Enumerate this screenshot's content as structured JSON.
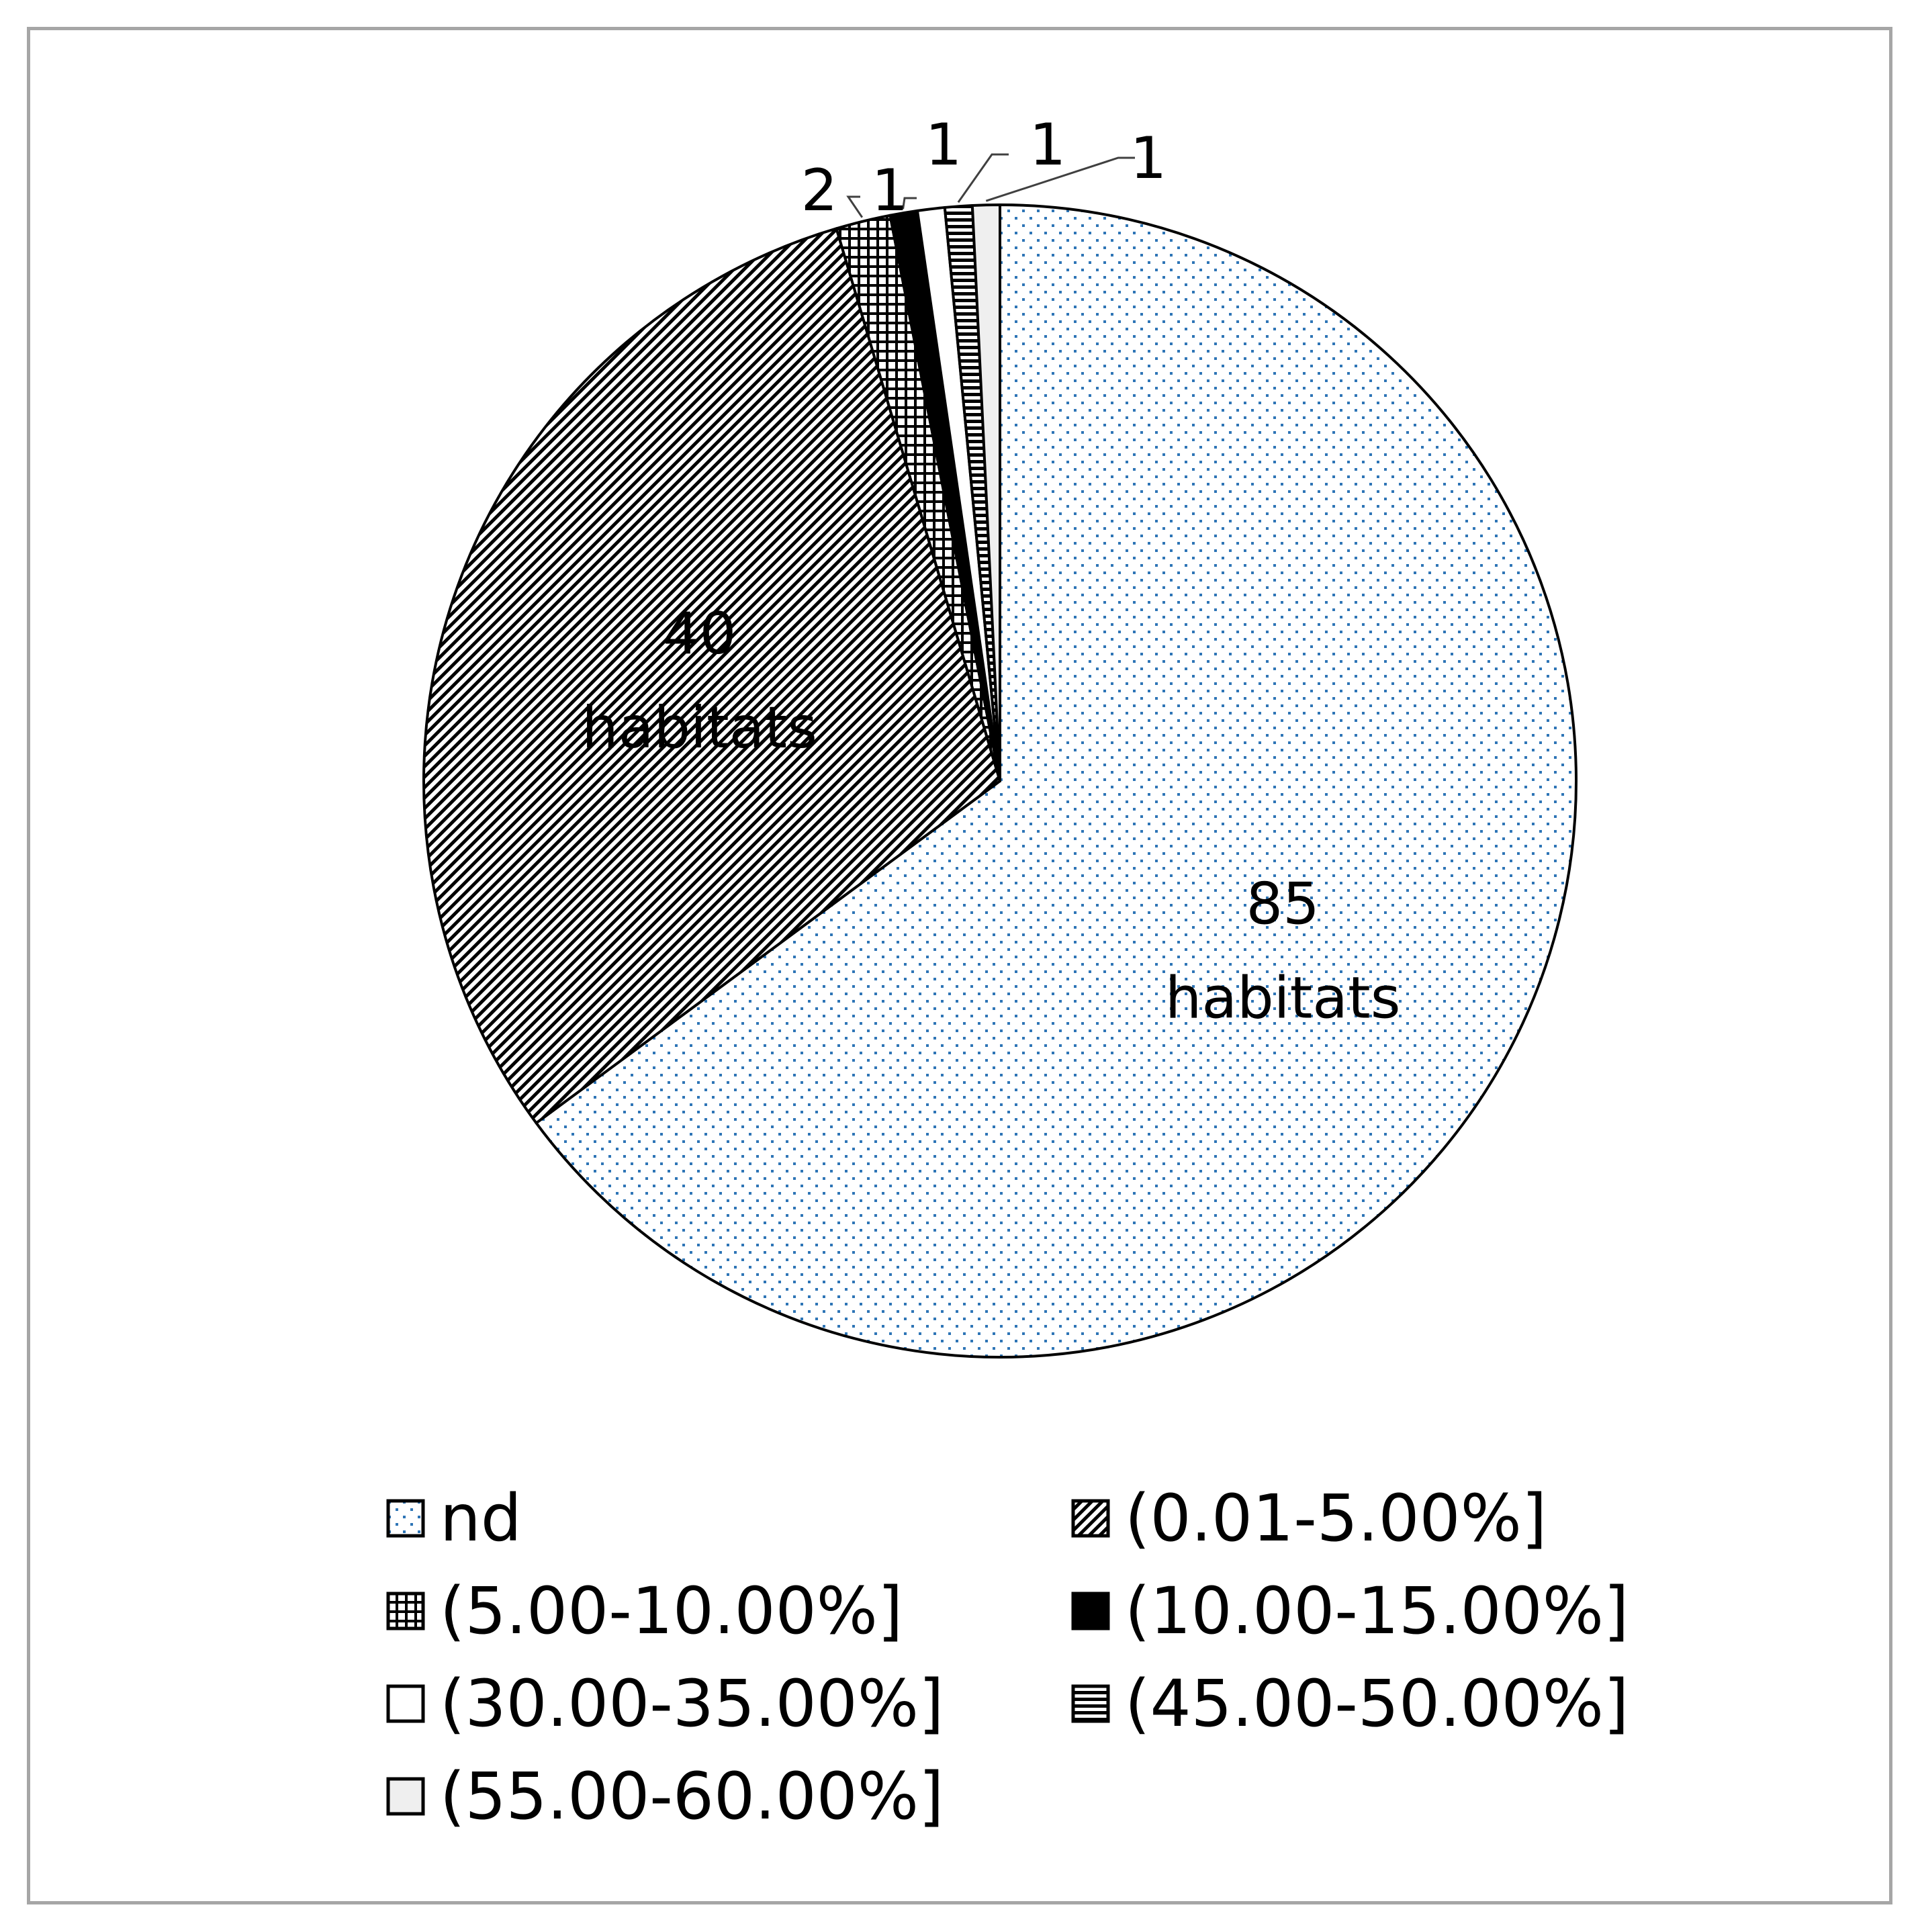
{
  "chart_data": {
    "type": "pie",
    "title": "",
    "start_angle": "12 o'clock, clockwise",
    "slices": [
      {
        "label": "nd",
        "value": 85,
        "data_label": "85 habitats",
        "pattern": "dots",
        "color": "#2e75b6"
      },
      {
        "label": "(0.01-5.00%]",
        "value": 40,
        "data_label": "40 habitats",
        "pattern": "diagonal-hatch",
        "color": "#000000"
      },
      {
        "label": "(5.00-10.00%]",
        "value": 2,
        "data_label": "2",
        "pattern": "grid",
        "color": "#000000"
      },
      {
        "label": "(10.00-15.00%]",
        "value": 1,
        "data_label": "1",
        "pattern": "solid",
        "color": "#000000"
      },
      {
        "label": "(30.00-35.00%]",
        "value": 1,
        "data_label": "1",
        "pattern": "empty",
        "color": "#ffffff"
      },
      {
        "label": "(45.00-50.00%]",
        "value": 1,
        "data_label": "1",
        "pattern": "horizontal-stripes",
        "color": "#000000"
      },
      {
        "label": "(55.00-60.00%]",
        "value": 1,
        "data_label": "1",
        "pattern": "light-gray",
        "color": "#efefef"
      }
    ],
    "legend": {
      "position": "bottom",
      "columns": 2
    }
  }
}
